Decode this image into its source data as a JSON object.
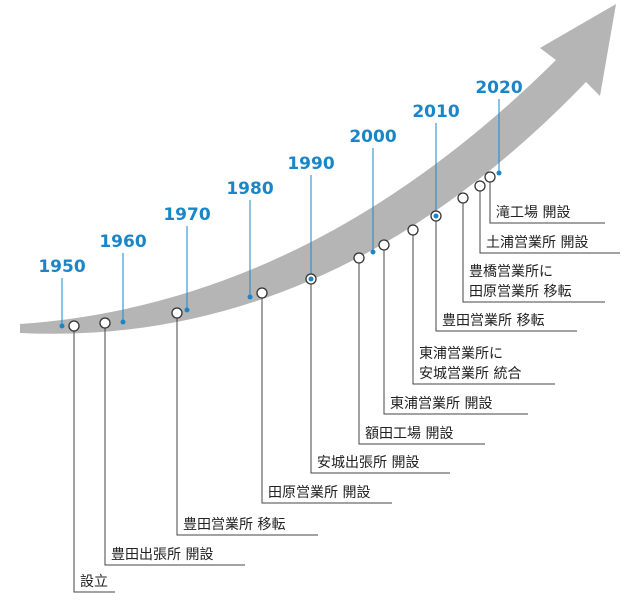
{
  "decades": [
    "1950",
    "1960",
    "1970",
    "1980",
    "1990",
    "2000",
    "2010",
    "2020"
  ],
  "events": [
    {
      "lines": [
        "設立"
      ]
    },
    {
      "lines": [
        "豊田出張所 開設"
      ]
    },
    {
      "lines": [
        "豊田営業所 移転"
      ]
    },
    {
      "lines": [
        "田原営業所 開設"
      ]
    },
    {
      "lines": [
        "安城出張所 開設"
      ]
    },
    {
      "lines": [
        "額田工場 開設"
      ]
    },
    {
      "lines": [
        "東浦営業所 開設"
      ]
    },
    {
      "lines": [
        "東浦営業所に",
        "安城営業所 統合"
      ]
    },
    {
      "lines": [
        "豊田営業所 移転"
      ]
    },
    {
      "lines": [
        "豊橋営業所に",
        "田原営業所 移転"
      ]
    },
    {
      "lines": [
        "土浦営業所 開設"
      ]
    },
    {
      "lines": [
        "滝工場 開設"
      ]
    }
  ]
}
